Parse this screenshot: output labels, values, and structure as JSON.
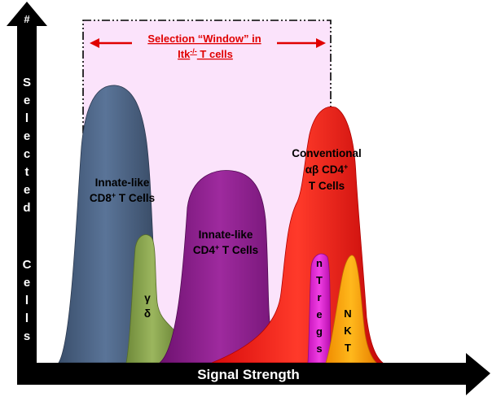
{
  "window_label": {
    "line1": "Selection “Window” in",
    "line2_main": "Itk",
    "line2_sup": "-/-",
    "line2_rest": " T cells"
  },
  "y_axis": {
    "symbol": "#",
    "letters": [
      "S",
      "e",
      "l",
      "e",
      "c",
      "t",
      "e",
      "d",
      "C",
      "e",
      "l",
      "l",
      "s"
    ]
  },
  "x_axis": {
    "label": "Signal Strength"
  },
  "populations": {
    "cd8": {
      "line1": "Innate-like",
      "line2_a": "CD8",
      "line2_sup": "+",
      "line2_b": " T Cells"
    },
    "gd": {
      "line1": "γ",
      "line2": "δ"
    },
    "cd4_innate": {
      "line1": "Innate-like",
      "line2_a": "CD4",
      "line2_sup": "+",
      "line2_b": " T Cells"
    },
    "conv": {
      "line1": "Conventional",
      "line2_a": "αβ CD4",
      "line2_sup": "+",
      "line3": "T Cells"
    },
    "ntregs": {
      "letters": [
        "n",
        "T",
        "r",
        "e",
        "g",
        "s"
      ]
    },
    "nkt": {
      "line1": "N",
      "line2": "K",
      "line3": "T"
    }
  },
  "colors": {
    "window_fill": "#fbe3fb",
    "window_label": "#e00000",
    "cd8": "#4a6283",
    "gd": "#8aa44e",
    "cd4_innate": "#8c1c8c",
    "conv": "#f01818",
    "ntregs": "#e424d8",
    "nkt": "#ffa000",
    "axis": "#000000"
  }
}
